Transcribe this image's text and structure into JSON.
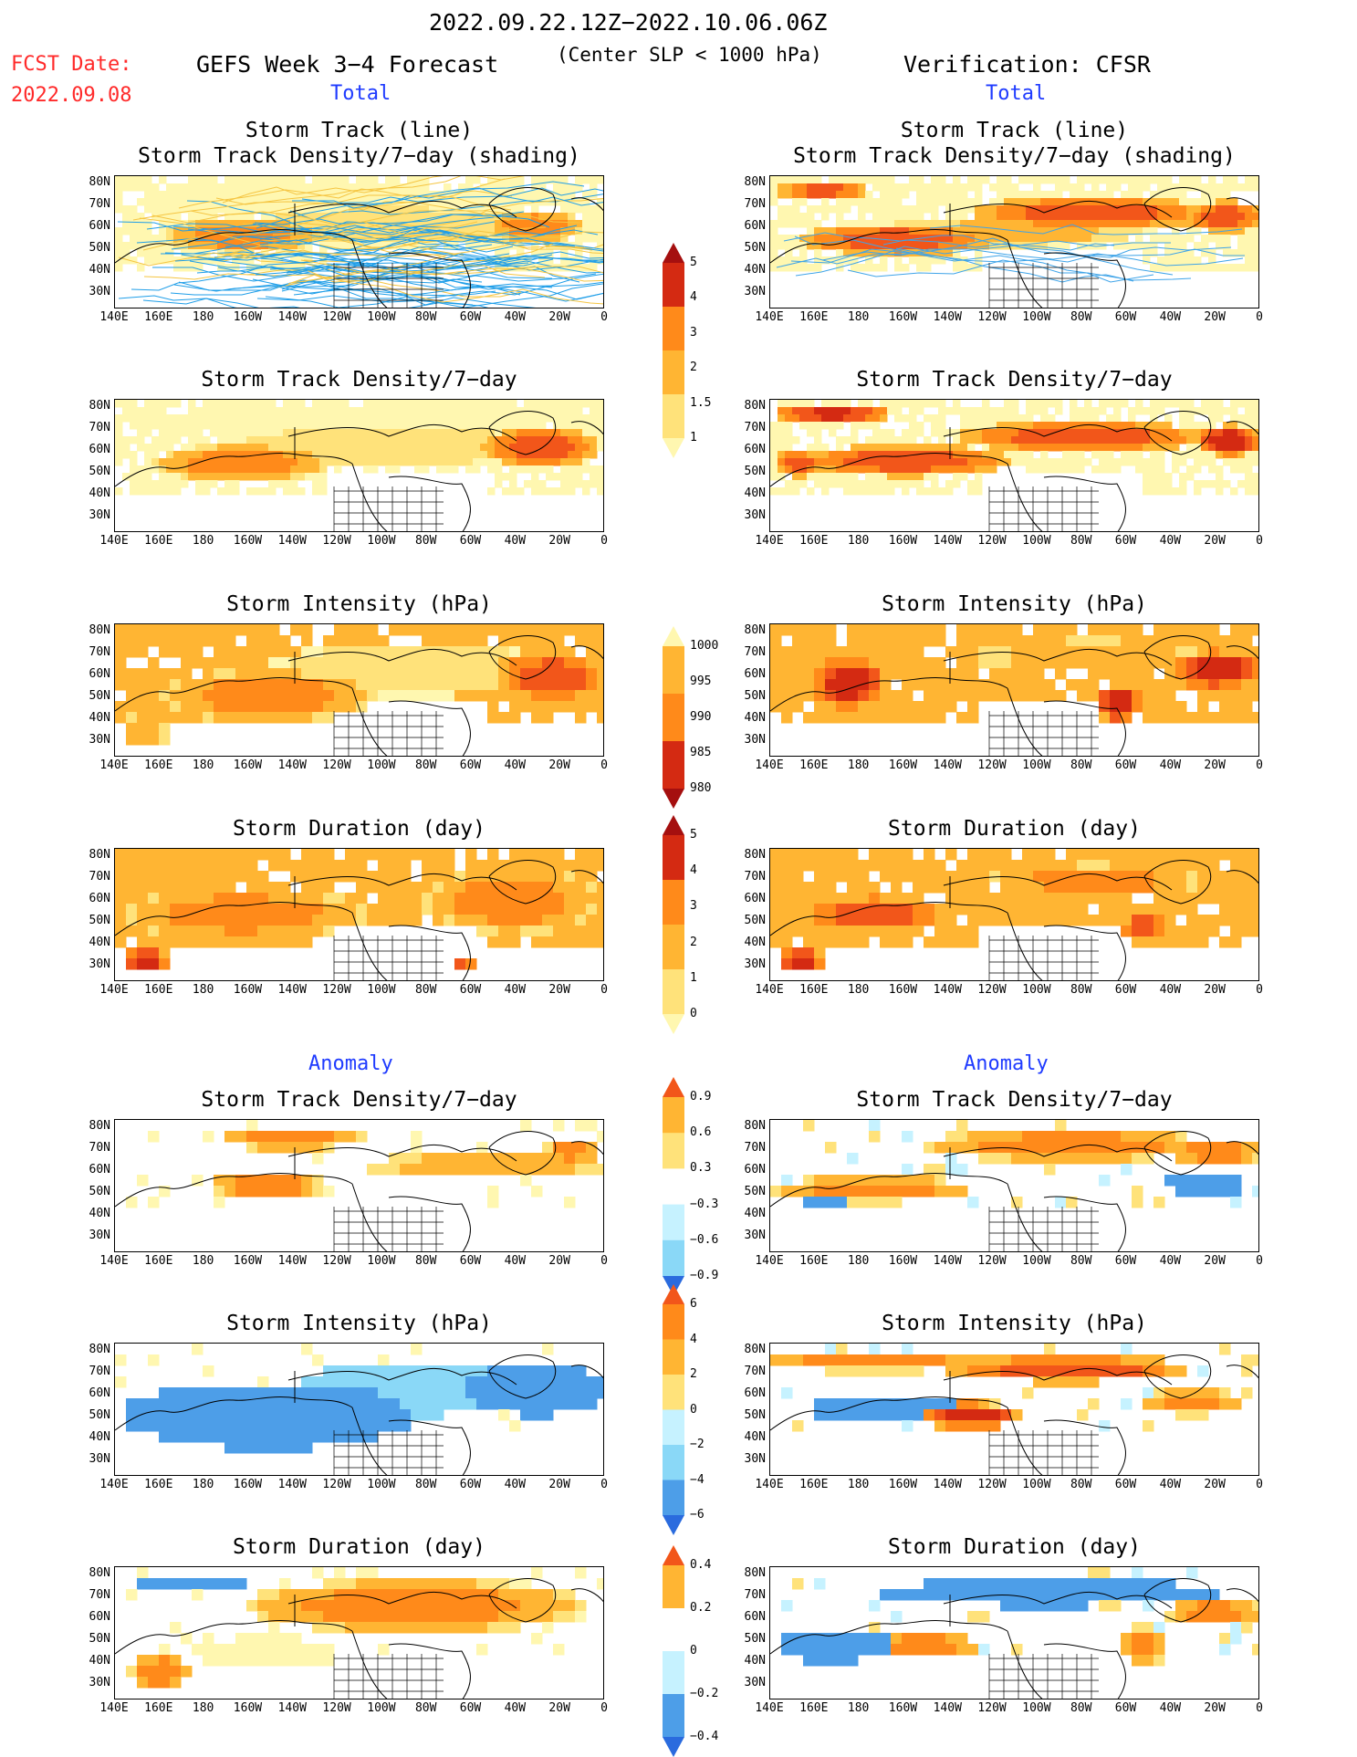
{
  "header": {
    "period": "2022.09.22.12Z−2022.10.06.06Z",
    "fcst_label": "FCST Date:",
    "fcst_date": "2022.09.08",
    "left_title": "GEFS Week 3−4 Forecast",
    "center_note": "(Center SLP < 1000 hPa)",
    "right_title": "Verification: CFSR",
    "total_label": "Total",
    "anomaly_label": "Anomaly"
  },
  "panel_titles": {
    "track_line": "Storm Track (line)",
    "track_shading": "Storm Track Density/7−day (shading)",
    "density": "Storm Track Density/7−day",
    "intensity": "Storm Intensity (hPa)",
    "duration": "Storm Duration (day)"
  },
  "axes": {
    "lat_labels": [
      "80N",
      "70N",
      "60N",
      "50N",
      "40N",
      "30N"
    ],
    "lon_labels": [
      "140E",
      "160E",
      "180",
      "160W",
      "140W",
      "120W",
      "100W",
      "80W",
      "60W",
      "40W",
      "20W",
      "0"
    ]
  },
  "colorbars": {
    "density_total": [
      "5",
      "4",
      "3",
      "2",
      "1.5",
      "1"
    ],
    "intensity_total": [
      "1000",
      "995",
      "990",
      "985",
      "980"
    ],
    "duration_total": [
      "5",
      "4",
      "3",
      "2",
      "1",
      "0"
    ],
    "density_anom": [
      "0.9",
      "0.6",
      "0.3",
      "−0.3",
      "−0.6",
      "−0.9"
    ],
    "intensity_anom": [
      "6",
      "4",
      "2",
      "0",
      "−2",
      "−4",
      "−6"
    ],
    "duration_anom": [
      "0.4",
      "0.2",
      "0",
      "−0.2",
      "−0.4"
    ]
  },
  "colors": {
    "warm": [
      "#fff7b0",
      "#ffe27a",
      "#ffb533",
      "#ff8a1a",
      "#f2561a",
      "#d42a12",
      "#a50f0f"
    ],
    "cool": [
      "#c6f2ff",
      "#8ad8f7",
      "#4d9ee8",
      "#2a6bde"
    ],
    "track_forecast": [
      "#1f9ee8",
      "#f5c542"
    ],
    "track_obs": "#3fa4e8"
  }
}
